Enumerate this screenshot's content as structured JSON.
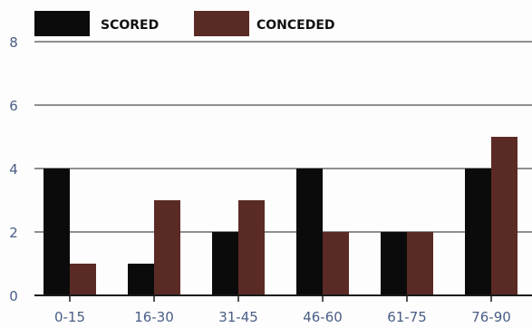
{
  "chart_data": {
    "type": "bar",
    "title": "",
    "xlabel": "",
    "ylabel": "",
    "categories": [
      "0-15",
      "16-30",
      "31-45",
      "46-60",
      "61-75",
      "76-90"
    ],
    "series": [
      {
        "name": "SCORED",
        "values": [
          4,
          1,
          2,
          4,
          2,
          4
        ],
        "color": "#0b0b0b"
      },
      {
        "name": "CONCEDED",
        "values": [
          1,
          3,
          3,
          2,
          2,
          5
        ],
        "color": "#5a2b24"
      }
    ],
    "ylim": [
      0,
      8
    ],
    "yticks": [
      "0",
      "2",
      "4",
      "6",
      "8"
    ],
    "grid": true,
    "legend_position": "top-left",
    "colors": {
      "background": "#fdfdfd",
      "grid": "#6b6b6b",
      "tick_text": "#4a5e86"
    }
  }
}
